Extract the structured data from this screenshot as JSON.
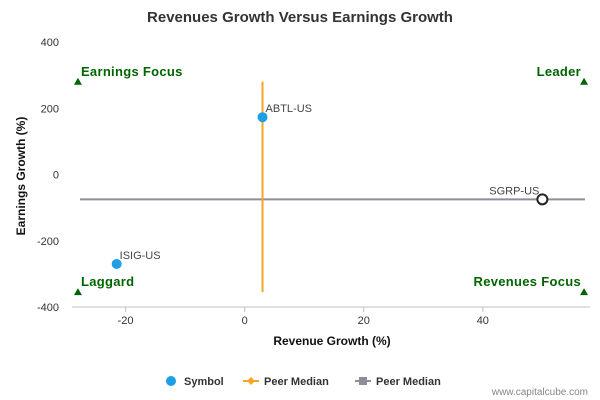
{
  "chart_data": {
    "type": "scatter",
    "title": "Revenues Growth Versus Earnings Growth",
    "xlabel": "Revenue Growth (%)",
    "ylabel": "Earnings Growth (%)",
    "xlim": [
      -29,
      58
    ],
    "ylim": [
      -400,
      400
    ],
    "x_ticks": [
      -20,
      0,
      20,
      40
    ],
    "y_ticks": [
      -400,
      -200,
      0,
      200,
      400
    ],
    "grid": false,
    "points": [
      {
        "label": "ABTL-US",
        "x": 3,
        "y": 173,
        "style": "filled",
        "color": "#1f9ee8"
      },
      {
        "label": "ISIG-US",
        "x": -21.5,
        "y": -270,
        "style": "filled",
        "color": "#1f9ee8"
      },
      {
        "label": "SGRP-US",
        "x": 50,
        "y": -75,
        "style": "hollow",
        "color": "#222222"
      }
    ],
    "peer_median": {
      "x": 3,
      "y": -75,
      "vertical_span": [
        -355,
        280
      ],
      "vertical_color": "#f5a623",
      "horizontal_color": "#8e8e9a"
    },
    "quadrants": [
      {
        "label": "Earnings Focus",
        "corner": "top-left",
        "x": -28,
        "y": 280
      },
      {
        "label": "Leader",
        "corner": "top-right",
        "x": 57,
        "y": 280
      },
      {
        "label": "Laggard",
        "corner": "bottom-left",
        "x": -28,
        "y": -355
      },
      {
        "label": "Revenues Focus",
        "corner": "bottom-right",
        "x": 57,
        "y": -355
      }
    ],
    "quadrant_color": "#006400",
    "legend": {
      "placement": "bottom",
      "items": [
        {
          "label": "Symbol",
          "marker": "circle",
          "color": "#1f9ee8"
        },
        {
          "label": "Peer Median",
          "marker": "diamond-line",
          "color": "#f5a623"
        },
        {
          "label": "Peer Median",
          "marker": "square-line",
          "color": "#8e8e9a"
        }
      ]
    }
  },
  "credit": "www.capitalcube.com"
}
